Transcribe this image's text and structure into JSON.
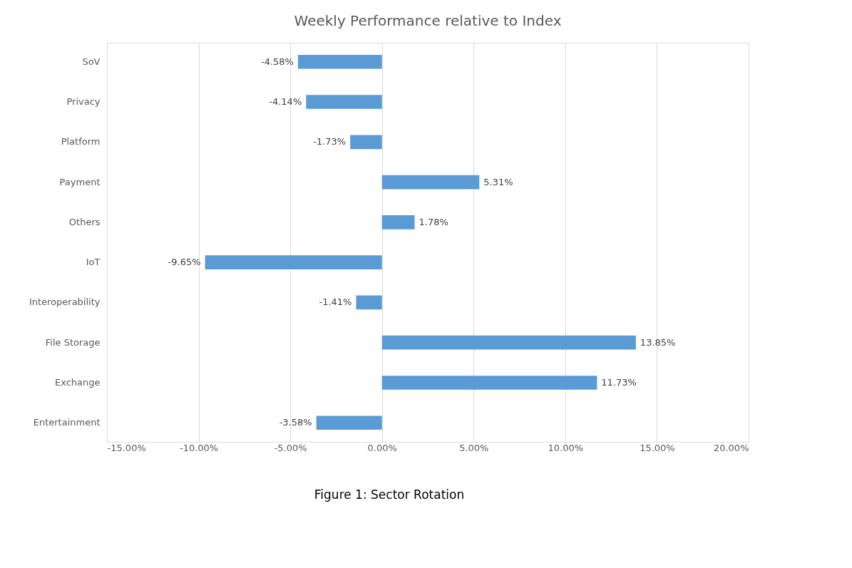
{
  "chart_data": {
    "type": "bar",
    "orientation": "horizontal",
    "title": "Weekly Performance relative to Index",
    "categories": [
      "SoV",
      "Privacy",
      "Platform",
      "Payment",
      "Others",
      "IoT",
      "Interoperability",
      "File Storage",
      "Exchange",
      "Entertainment"
    ],
    "values": [
      -4.58,
      -4.14,
      -1.73,
      5.31,
      1.78,
      -9.65,
      -1.41,
      13.85,
      11.73,
      -3.58
    ],
    "value_labels": [
      "-4.58%",
      "-4.14%",
      "-1.73%",
      "5.31%",
      "1.78%",
      "-9.65%",
      "-1.41%",
      "13.85%",
      "11.73%",
      "-3.58%"
    ],
    "color": "#5b9bd5",
    "xlim": [
      -15,
      20
    ],
    "xticks": [
      {
        "value": -15,
        "label": "-15.00%"
      },
      {
        "value": -10,
        "label": "-10.00%"
      },
      {
        "value": -5,
        "label": "-5.00%"
      },
      {
        "value": 0,
        "label": "0.00%"
      },
      {
        "value": 5,
        "label": "5.00%"
      },
      {
        "value": 10,
        "label": "10.00%"
      },
      {
        "value": 15,
        "label": "15.00%"
      },
      {
        "value": 20,
        "label": "20.00%"
      }
    ],
    "grid": "x",
    "annotations": [
      "Figure 1: Sector Rotation"
    ]
  }
}
